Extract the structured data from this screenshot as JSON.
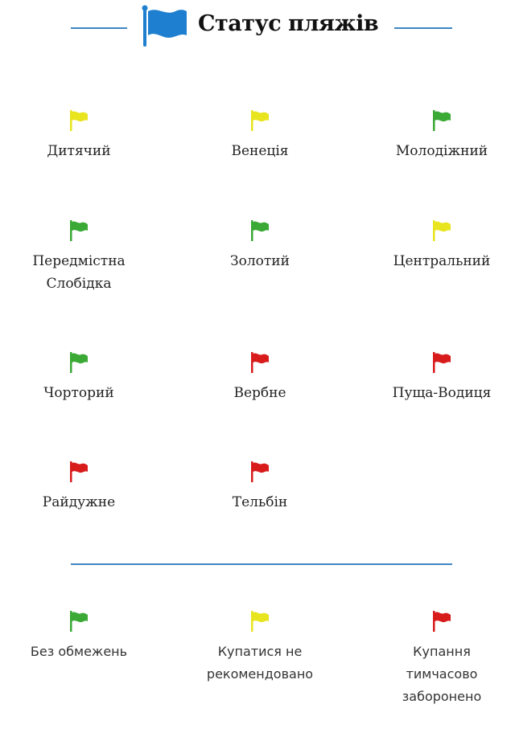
{
  "header": {
    "title": "Статус пляжів",
    "icon": "blue-flag-icon"
  },
  "colors": {
    "green": "#3aa935",
    "yellow": "#e8e41e",
    "red": "#d81b1b",
    "blue": "#1e7fd0",
    "divider": "#3f87c2"
  },
  "beaches": [
    {
      "name": "Дитячий",
      "status": "yellow"
    },
    {
      "name": "Венеція",
      "status": "yellow"
    },
    {
      "name": "Молодіжний",
      "status": "green"
    },
    {
      "name": "Передмістна Слобідка",
      "status": "green"
    },
    {
      "name": "Золотий",
      "status": "green"
    },
    {
      "name": "Центральний",
      "status": "yellow"
    },
    {
      "name": "Чорторий",
      "status": "green"
    },
    {
      "name": "Вербне",
      "status": "red"
    },
    {
      "name": "Пуща-Водиця",
      "status": "red"
    },
    {
      "name": "Райдужне",
      "status": "red"
    },
    {
      "name": "Тельбін",
      "status": "red"
    }
  ],
  "legend": [
    {
      "label": "Без обмежень",
      "status": "green"
    },
    {
      "label": "Купатися не рекомендовано",
      "status": "yellow"
    },
    {
      "label": "Купання тимчасово заборонено",
      "status": "red"
    }
  ]
}
